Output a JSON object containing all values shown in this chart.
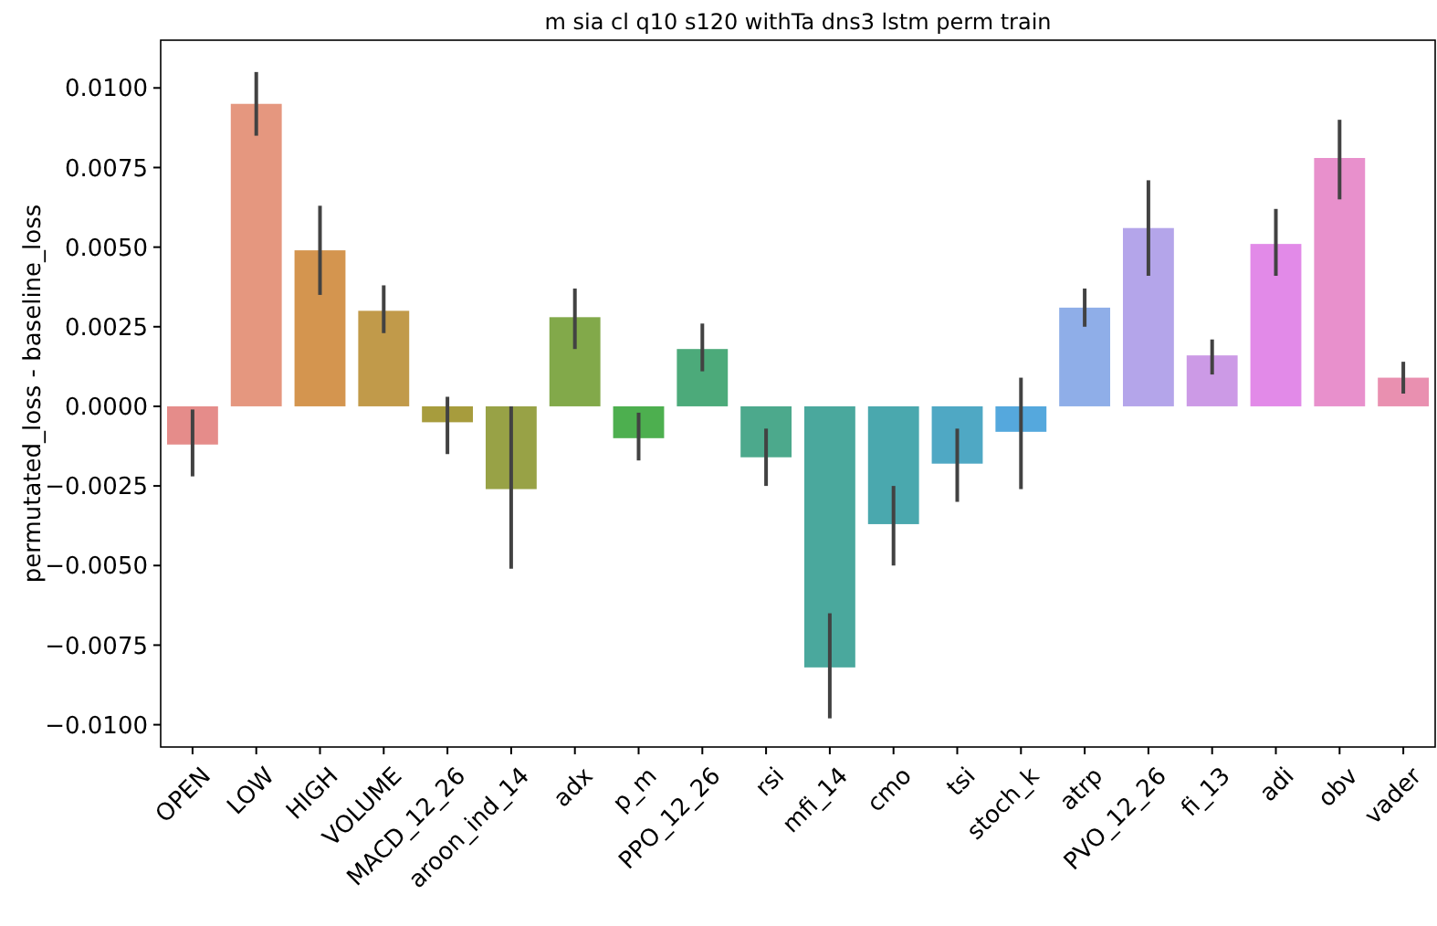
{
  "chart_data": {
    "type": "bar",
    "title": "m sia cl q10 s120 withTa dns3 lstm perm train",
    "ylabel": "permutated_loss - baseline_loss",
    "categories": [
      "OPEN",
      "LOW",
      "HIGH",
      "VOLUME",
      "MACD_12_26",
      "aroon_ind_14",
      "adx",
      "p_m",
      "PPO_12_26",
      "rsi",
      "mfi_14",
      "cmo",
      "tsi",
      "stoch_k",
      "atrp",
      "PVO_12_26",
      "fi_13",
      "adi",
      "obv",
      "vader"
    ],
    "values": [
      -0.0012,
      0.0095,
      0.0049,
      0.003,
      -0.0005,
      -0.0026,
      0.0028,
      -0.001,
      0.0018,
      -0.0016,
      -0.0082,
      -0.0037,
      -0.0018,
      -0.0008,
      0.0031,
      0.0056,
      0.0016,
      0.0051,
      0.0078,
      0.0009
    ],
    "errors": [
      [
        -0.0022,
        -0.0001
      ],
      [
        0.0085,
        0.0105
      ],
      [
        0.0035,
        0.0063
      ],
      [
        0.0023,
        0.0038
      ],
      [
        -0.0015,
        0.0003
      ],
      [
        -0.0051,
        0.0
      ],
      [
        0.0018,
        0.0037
      ],
      [
        -0.0017,
        -0.0002
      ],
      [
        0.0011,
        0.0026
      ],
      [
        -0.0025,
        -0.0007
      ],
      [
        -0.0098,
        -0.0065
      ],
      [
        -0.005,
        -0.0025
      ],
      [
        -0.003,
        -0.0007
      ],
      [
        -0.0026,
        0.0009
      ],
      [
        0.0025,
        0.0037
      ],
      [
        0.0041,
        0.0071
      ],
      [
        0.001,
        0.0021
      ],
      [
        0.0041,
        0.0062
      ],
      [
        0.0065,
        0.009
      ],
      [
        0.0004,
        0.0014
      ]
    ],
    "colors": [
      "#e58c8a",
      "#e5977f",
      "#d4954f",
      "#c19a4a",
      "#a79c3d",
      "#98a246",
      "#82a94a",
      "#4daf4f",
      "#4caa7a",
      "#4ca98c",
      "#4aa89d",
      "#4aa8ae",
      "#4fa8c4",
      "#55a8dd",
      "#8faee8",
      "#b4a5ea",
      "#cc9ae6",
      "#e28ae8",
      "#e890cc",
      "#e990b0"
    ],
    "ylim": [
      -0.0107,
      0.0115
    ],
    "yticks": [
      {
        "value": -0.01,
        "label": "−0.0100"
      },
      {
        "value": -0.0075,
        "label": "−0.0075"
      },
      {
        "value": -0.005,
        "label": "−0.0050"
      },
      {
        "value": -0.0025,
        "label": "−0.0025"
      },
      {
        "value": 0,
        "label": "0.0000"
      },
      {
        "value": 0.0025,
        "label": "0.0025"
      },
      {
        "value": 0.005,
        "label": "0.0050"
      },
      {
        "value": 0.0075,
        "label": "0.0075"
      },
      {
        "value": 0.01,
        "label": "0.0100"
      }
    ],
    "grid": false
  }
}
